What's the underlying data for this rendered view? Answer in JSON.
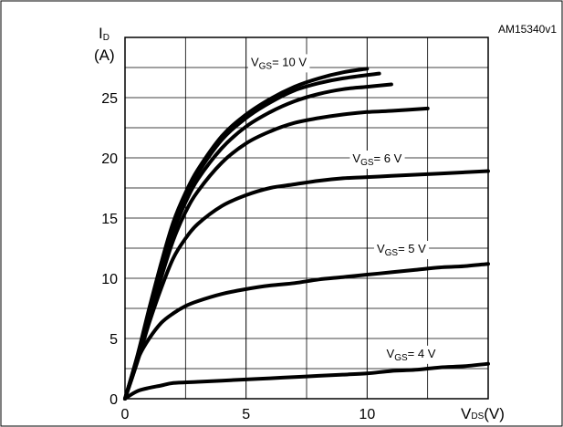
{
  "chart_data": {
    "type": "line",
    "figure_code": "AM15340v1",
    "ylabel": {
      "symbol": "I",
      "subscript": "D",
      "unit": "(A)"
    },
    "xlabel": {
      "symbol": "V",
      "subscript": "DS",
      "unit": "(V)"
    },
    "xlim": [
      0,
      15
    ],
    "ylim": [
      0,
      30
    ],
    "xticks": [
      0,
      5,
      10
    ],
    "yticks": [
      0,
      5,
      10,
      15,
      20,
      25
    ],
    "grid": true,
    "curve_labels": [
      {
        "prefix": "V",
        "subscript": "GS",
        "text": "= 10 V",
        "at": [
          5.2,
          28.0
        ]
      },
      {
        "prefix": "V",
        "subscript": "GS",
        "text": "= 6 V",
        "at": [
          9.4,
          20.0
        ]
      },
      {
        "prefix": "V",
        "subscript": "GS",
        "text": "= 5 V",
        "at": [
          10.4,
          12.5
        ]
      },
      {
        "prefix": "V",
        "subscript": "GS",
        "text": "= 4 V",
        "at": [
          10.8,
          3.8
        ]
      }
    ],
    "series": [
      {
        "x": [
          0,
          0.5,
          1,
          1.5,
          2,
          2.5,
          3,
          4,
          5,
          6,
          7,
          8,
          9,
          10
        ],
        "values": [
          0,
          3.5,
          7.5,
          11.3,
          14.7,
          17.1,
          19.0,
          21.8,
          23.6,
          24.9,
          25.9,
          26.6,
          27.1,
          27.4
        ]
      },
      {
        "x": [
          0,
          0.5,
          1,
          1.5,
          2,
          2.5,
          3,
          4,
          5,
          6,
          7,
          8,
          9,
          10.5
        ],
        "values": [
          0,
          3.4,
          7.3,
          11.0,
          14.3,
          16.8,
          18.7,
          21.5,
          23.3,
          24.6,
          25.6,
          26.2,
          26.6,
          27.0
        ]
      },
      {
        "x": [
          0,
          0.5,
          1,
          1.5,
          2,
          2.5,
          3,
          4,
          5,
          6,
          7,
          8,
          9,
          10,
          11.0
        ],
        "values": [
          0,
          3.3,
          7.1,
          10.6,
          13.9,
          16.3,
          18.2,
          20.8,
          22.6,
          23.8,
          24.7,
          25.3,
          25.7,
          25.9,
          26.1
        ]
      },
      {
        "x": [
          0,
          0.5,
          1,
          1.5,
          2,
          2.5,
          3,
          4,
          5,
          6,
          7,
          8,
          9,
          10,
          11,
          12.5
        ],
        "values": [
          0,
          3.2,
          6.8,
          10.1,
          13.2,
          15.5,
          17.2,
          19.6,
          21.2,
          22.2,
          22.9,
          23.3,
          23.6,
          23.8,
          23.9,
          24.1
        ]
      },
      {
        "x": [
          0,
          0.5,
          1,
          1.5,
          2,
          2.5,
          3,
          4,
          5,
          6,
          7,
          8,
          9,
          10,
          11,
          12,
          13,
          15
        ],
        "values": [
          0,
          3.0,
          6.3,
          9.2,
          11.7,
          13.3,
          14.5,
          16.0,
          16.9,
          17.5,
          17.8,
          18.1,
          18.3,
          18.4,
          18.5,
          18.6,
          18.7,
          18.9
        ]
      },
      {
        "x": [
          0,
          0.3,
          0.6,
          1,
          1.5,
          2,
          2.5,
          3,
          4,
          5,
          6,
          7,
          8,
          9,
          10,
          11,
          12,
          13,
          14,
          15
        ],
        "values": [
          0,
          1.8,
          3.6,
          5.0,
          6.3,
          7.1,
          7.7,
          8.1,
          8.7,
          9.1,
          9.4,
          9.6,
          9.9,
          10.1,
          10.3,
          10.5,
          10.7,
          10.9,
          11.0,
          11.2
        ]
      },
      {
        "x": [
          0,
          0.3,
          0.6,
          1,
          1.5,
          2,
          3,
          4,
          5,
          6,
          7,
          8,
          9,
          10,
          11,
          12,
          13,
          14,
          15
        ],
        "values": [
          0,
          0.4,
          0.7,
          0.9,
          1.1,
          1.3,
          1.4,
          1.5,
          1.6,
          1.7,
          1.8,
          1.9,
          2.0,
          2.1,
          2.3,
          2.4,
          2.6,
          2.7,
          2.9
        ]
      }
    ]
  }
}
